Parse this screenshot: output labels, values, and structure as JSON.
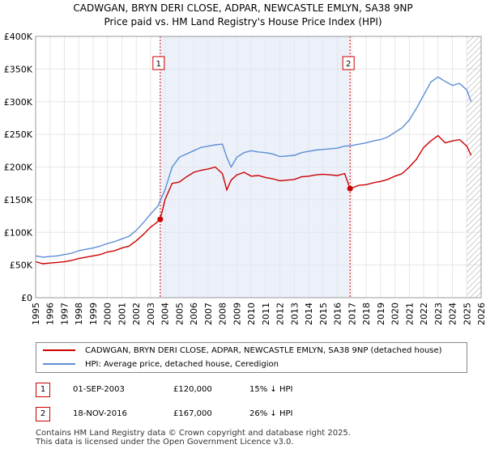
{
  "title_line1": "CADWGAN, BRYN DERI CLOSE, ADPAR, NEWCASTLE EMLYN, SA38 9NP",
  "title_line2": "Price paid vs. HM Land Registry's House Price Index (HPI)",
  "chart_data": {
    "type": "line",
    "xlim": [
      1995,
      2026
    ],
    "ylim": [
      0,
      400000
    ],
    "y_ticks": [
      0,
      50000,
      100000,
      150000,
      200000,
      250000,
      300000,
      350000,
      400000
    ],
    "y_tick_labels": [
      "£0",
      "£50K",
      "£100K",
      "£150K",
      "£200K",
      "£250K",
      "£300K",
      "£350K",
      "£400K"
    ],
    "x_ticks": [
      1995,
      1996,
      1997,
      1998,
      1999,
      2000,
      2001,
      2002,
      2003,
      2004,
      2005,
      2006,
      2007,
      2008,
      2009,
      2010,
      2011,
      2012,
      2013,
      2014,
      2015,
      2016,
      2017,
      2018,
      2019,
      2020,
      2021,
      2022,
      2023,
      2024,
      2025,
      2026
    ],
    "x_tick_labels": [
      "1995",
      "1996",
      "1997",
      "1998",
      "1999",
      "2000",
      "2001",
      "2002",
      "2003",
      "2004",
      "2005",
      "2006",
      "2007",
      "2008",
      "2009",
      "2010",
      "2011",
      "2012",
      "2013",
      "2014",
      "2015",
      "2016",
      "2017",
      "2018",
      "2019",
      "2020",
      "2021",
      "2022",
      "2023",
      "2024",
      "2025",
      "2026"
    ],
    "grid": true,
    "shaded_ranges": [
      [
        2003.67,
        2016.88
      ]
    ],
    "hatched_from": 2025.0,
    "series": [
      {
        "name": "CADWGAN, BRYN DERI CLOSE, ADPAR, NEWCASTLE EMLYN, SA38 9NP (detached house)",
        "color": "#cc0000",
        "x": [
          1995.0,
          1995.5,
          1996.0,
          1996.5,
          1997.0,
          1997.5,
          1998.0,
          1998.5,
          1999.0,
          1999.5,
          2000.0,
          2000.5,
          2001.0,
          2001.5,
          2002.0,
          2002.5,
          2003.0,
          2003.3,
          2003.67,
          2004.0,
          2004.5,
          2005.0,
          2005.5,
          2006.0,
          2006.5,
          2007.0,
          2007.5,
          2008.0,
          2008.3,
          2008.6,
          2009.0,
          2009.5,
          2010.0,
          2010.5,
          2011.0,
          2011.5,
          2012.0,
          2012.5,
          2013.0,
          2013.5,
          2014.0,
          2014.5,
          2015.0,
          2015.5,
          2016.0,
          2016.5,
          2016.88,
          2017.5,
          2018.0,
          2018.5,
          2019.0,
          2019.5,
          2020.0,
          2020.5,
          2021.0,
          2021.5,
          2022.0,
          2022.5,
          2023.0,
          2023.5,
          2024.0,
          2024.5,
          2025.0,
          2025.3
        ],
        "y": [
          55000,
          52000,
          53000,
          54000,
          55000,
          57000,
          60000,
          62000,
          64000,
          66000,
          70000,
          72000,
          76000,
          79000,
          87000,
          97000,
          108000,
          113000,
          120000,
          150000,
          175000,
          177000,
          185000,
          192000,
          195000,
          197000,
          200000,
          190000,
          165000,
          180000,
          188000,
          192000,
          186000,
          187000,
          184000,
          182000,
          179000,
          180000,
          181000,
          185000,
          186000,
          188000,
          189000,
          188000,
          187000,
          190000,
          167000,
          172000,
          173000,
          176000,
          178000,
          181000,
          186000,
          190000,
          200000,
          212000,
          230000,
          240000,
          248000,
          237000,
          240000,
          242000,
          232000,
          218000
        ]
      },
      {
        "name": "HPI: Average price, detached house, Ceredigion",
        "color": "#5b8fd4",
        "x": [
          1995.0,
          1995.5,
          1996.0,
          1996.5,
          1997.0,
          1997.5,
          1998.0,
          1998.5,
          1999.0,
          1999.5,
          2000.0,
          2000.5,
          2001.0,
          2001.5,
          2002.0,
          2002.5,
          2003.0,
          2003.5,
          2004.0,
          2004.5,
          2005.0,
          2005.5,
          2006.0,
          2006.5,
          2007.0,
          2007.5,
          2008.0,
          2008.3,
          2008.6,
          2009.0,
          2009.5,
          2010.0,
          2010.5,
          2011.0,
          2011.5,
          2012.0,
          2012.5,
          2013.0,
          2013.5,
          2014.0,
          2014.5,
          2015.0,
          2015.5,
          2016.0,
          2016.5,
          2017.0,
          2017.5,
          2018.0,
          2018.5,
          2019.0,
          2019.5,
          2020.0,
          2020.5,
          2021.0,
          2021.5,
          2022.0,
          2022.5,
          2023.0,
          2023.5,
          2024.0,
          2024.5,
          2025.0,
          2025.3
        ],
        "y": [
          64000,
          62000,
          63000,
          64000,
          66000,
          68000,
          72000,
          74000,
          76000,
          79000,
          83000,
          86000,
          90000,
          94000,
          103000,
          115000,
          128000,
          140000,
          165000,
          200000,
          215000,
          220000,
          225000,
          230000,
          232000,
          234000,
          235000,
          215000,
          200000,
          215000,
          222000,
          225000,
          223000,
          222000,
          220000,
          216000,
          217000,
          218000,
          222000,
          224000,
          226000,
          227000,
          228000,
          229000,
          232000,
          233000,
          235000,
          237000,
          240000,
          242000,
          246000,
          253000,
          260000,
          272000,
          290000,
          310000,
          330000,
          338000,
          331000,
          325000,
          328000,
          318000,
          300000
        ]
      }
    ],
    "markers": [
      {
        "label": "1",
        "x": 2003.67,
        "y": 120000
      },
      {
        "label": "2",
        "x": 2016.88,
        "y": 167000
      }
    ]
  },
  "legend": {
    "property_label": "CADWGAN, BRYN DERI CLOSE, ADPAR, NEWCASTLE EMLYN, SA38 9NP (detached house)",
    "hpi_label": "HPI: Average price, detached house, Ceredigion",
    "property_color": "#cc0000",
    "hpi_color": "#5b8fd4"
  },
  "transactions": [
    {
      "num": "1",
      "date": "01-SEP-2003",
      "price": "£120,000",
      "hpi": "15% ↓ HPI"
    },
    {
      "num": "2",
      "date": "18-NOV-2016",
      "price": "£167,000",
      "hpi": "26% ↓ HPI"
    }
  ],
  "footer": {
    "line1": "Contains HM Land Registry data © Crown copyright and database right 2025.",
    "line2": "This data is licensed under the Open Government Licence v3.0."
  }
}
